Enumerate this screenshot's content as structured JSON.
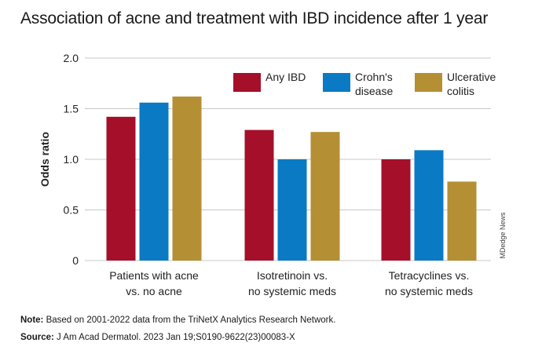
{
  "title": "Association of acne and treatment with IBD incidence after 1 year",
  "credit": "MDedge News",
  "note": {
    "label": "Note:",
    "text": "Based on 2001-2022 data from the TriNetX Analytics Research Network."
  },
  "source": {
    "label": "Source:",
    "text": "J Am Acad Dermatol. 2023 Jan 19;S0190-9622(23)00083-X"
  },
  "colors": {
    "any_ibd": "#a50f2a",
    "crohns": "#0a7ac4",
    "uc": "#b58f34",
    "grid": "#c8c8c8"
  },
  "chart_data": {
    "type": "bar",
    "ylabel": "Odds ratio",
    "ylim": [
      0,
      2.0
    ],
    "yticks": [
      "0",
      "0.5",
      "1.0",
      "1.5",
      "2.0"
    ],
    "grid": true,
    "legend_position": "top-right",
    "categories": [
      [
        "Patients with acne",
        "vs. no acne"
      ],
      [
        "Isotretinoin vs.",
        "no systemic meds"
      ],
      [
        "Tetracyclines vs.",
        "no systemic meds"
      ]
    ],
    "series": [
      {
        "name": "Any IBD",
        "legend_lines": [
          "Any IBD"
        ],
        "color": "#a50f2a",
        "values": [
          1.42,
          1.29,
          1.0
        ]
      },
      {
        "name": "Crohn's disease",
        "legend_lines": [
          "Crohn's",
          "disease"
        ],
        "color": "#0a7ac4",
        "values": [
          1.56,
          1.0,
          1.09
        ]
      },
      {
        "name": "Ulcerative colitis",
        "legend_lines": [
          "Ulcerative",
          "colitis"
        ],
        "color": "#b58f34",
        "values": [
          1.62,
          1.27,
          0.78
        ]
      }
    ]
  }
}
